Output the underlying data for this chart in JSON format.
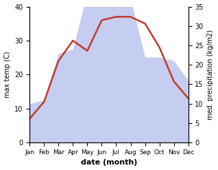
{
  "months": [
    "Jan",
    "Feb",
    "Mar",
    "Apr",
    "May",
    "Jun",
    "Jul",
    "Aug",
    "Sep",
    "Oct",
    "Nov",
    "Dec"
  ],
  "temperature": [
    7,
    12,
    24,
    30,
    27,
    36,
    37,
    37,
    35,
    28,
    18,
    13
  ],
  "precipitation": [
    10,
    11,
    23,
    24,
    39,
    38,
    37,
    37,
    22,
    22,
    21,
    16
  ],
  "temp_color": "#c0392b",
  "precip_fill_color": "#c5cdf0",
  "xlabel": "date (month)",
  "ylabel_left": "max temp (C)",
  "ylabel_right": "med. precipitation (kg/m2)",
  "ylim_left": [
    0,
    40
  ],
  "ylim_right": [
    0,
    35
  ],
  "bg_color": "#ffffff",
  "temp_linewidth": 1.8
}
